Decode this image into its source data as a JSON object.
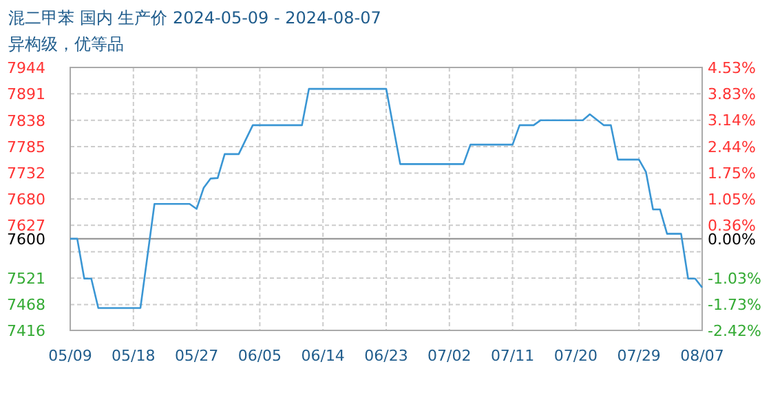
{
  "chart_data": {
    "type": "line",
    "title": "混二甲苯 国内 生产价 2024-05-09 - 2024-08-07",
    "subtitle": "异构级，优等品",
    "x": [
      "2024-05-09",
      "2024-05-10",
      "2024-05-11",
      "2024-05-12",
      "2024-05-13",
      "2024-05-19",
      "2024-05-21",
      "2024-05-26",
      "2024-05-27",
      "2024-05-28",
      "2024-05-29",
      "2024-05-30",
      "2024-05-31",
      "2024-06-02",
      "2024-06-04",
      "2024-06-11",
      "2024-06-12",
      "2024-06-23",
      "2024-06-25",
      "2024-07-04",
      "2024-07-05",
      "2024-07-11",
      "2024-07-12",
      "2024-07-14",
      "2024-07-15",
      "2024-07-21",
      "2024-07-22",
      "2024-07-24",
      "2024-07-25",
      "2024-07-26",
      "2024-07-29",
      "2024-07-30",
      "2024-07-31",
      "2024-08-01",
      "2024-08-02",
      "2024-08-04",
      "2024-08-05",
      "2024-08-06",
      "2024-08-07"
    ],
    "series": [
      {
        "color": "#3a96d4",
        "values": [
          7600,
          7600,
          7520,
          7520,
          7461,
          7461,
          7670,
          7670,
          7660,
          7702,
          7721,
          7722,
          7770,
          7770,
          7828,
          7828,
          7901,
          7901,
          7750,
          7750,
          7789,
          7789,
          7828,
          7828,
          7838,
          7838,
          7850,
          7828,
          7828,
          7759,
          7759,
          7734,
          7659,
          7659,
          7610,
          7610,
          7520,
          7520,
          7502
        ]
      }
    ],
    "xlim": [
      "2024-05-09",
      "2024-08-07"
    ],
    "xticks": [
      {
        "value": "2024-05-09",
        "label": "05/09"
      },
      {
        "value": "2024-05-18",
        "label": "05/18"
      },
      {
        "value": "2024-05-27",
        "label": "05/27"
      },
      {
        "value": "2024-06-05",
        "label": "06/05"
      },
      {
        "value": "2024-06-14",
        "label": "06/14"
      },
      {
        "value": "2024-06-23",
        "label": "06/23"
      },
      {
        "value": "2024-07-02",
        "label": "07/02"
      },
      {
        "value": "2024-07-11",
        "label": "07/11"
      },
      {
        "value": "2024-07-20",
        "label": "07/20"
      },
      {
        "value": "2024-07-29",
        "label": "07/29"
      },
      {
        "value": "2024-08-07",
        "label": "08/07"
      }
    ],
    "ylim": [
      7416,
      7944
    ],
    "yticks": [
      7944,
      7891,
      7838,
      7785,
      7732,
      7680,
      7627,
      7600,
      {
        "value": 7574,
        "label": null
      },
      7521,
      7468,
      7416
    ],
    "y2lim": [
      -2.42,
      4.53
    ],
    "y2ticks": [
      {
        "value": 4.53,
        "label": "4.53%"
      },
      {
        "value": 3.83,
        "label": "3.83%"
      },
      {
        "value": 3.14,
        "label": "3.14%"
      },
      {
        "value": 2.44,
        "label": "2.44%"
      },
      {
        "value": 1.75,
        "label": "1.75%"
      },
      {
        "value": 1.05,
        "label": "1.05%"
      },
      {
        "value": 0.36,
        "label": "0.36%"
      },
      {
        "value": 0,
        "label": "0.00%"
      },
      {
        "value": -1.03,
        "label": "-1.03%"
      },
      {
        "value": -1.73,
        "label": "-1.73%"
      },
      {
        "value": -2.42,
        "label": "-2.42%"
      }
    ],
    "ref_lines": [
      {
        "axis": "y",
        "value": 7600,
        "color": "#999999"
      }
    ],
    "grid": true,
    "marker": "none",
    "line_style": "solid"
  }
}
